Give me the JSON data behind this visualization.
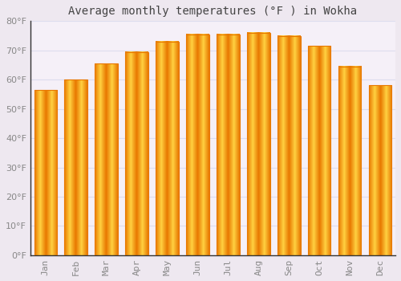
{
  "title": "Average monthly temperatures (°F ) in Wokha",
  "months": [
    "Jan",
    "Feb",
    "Mar",
    "Apr",
    "May",
    "Jun",
    "Jul",
    "Aug",
    "Sep",
    "Oct",
    "Nov",
    "Dec"
  ],
  "values": [
    56.5,
    60.0,
    65.5,
    69.5,
    73.0,
    75.5,
    75.5,
    76.0,
    75.0,
    71.5,
    64.5,
    58.0
  ],
  "bar_color_center": "#FFD040",
  "bar_color_edge": "#E87800",
  "background_color": "#EEE8F0",
  "grid_color": "#DDDDEE",
  "plot_bg_color": "#F5F0F8",
  "text_color": "#888888",
  "title_color": "#444444",
  "spine_color": "#333333",
  "ylim": [
    0,
    80
  ],
  "ytick_step": 10,
  "title_fontsize": 10,
  "tick_fontsize": 8
}
